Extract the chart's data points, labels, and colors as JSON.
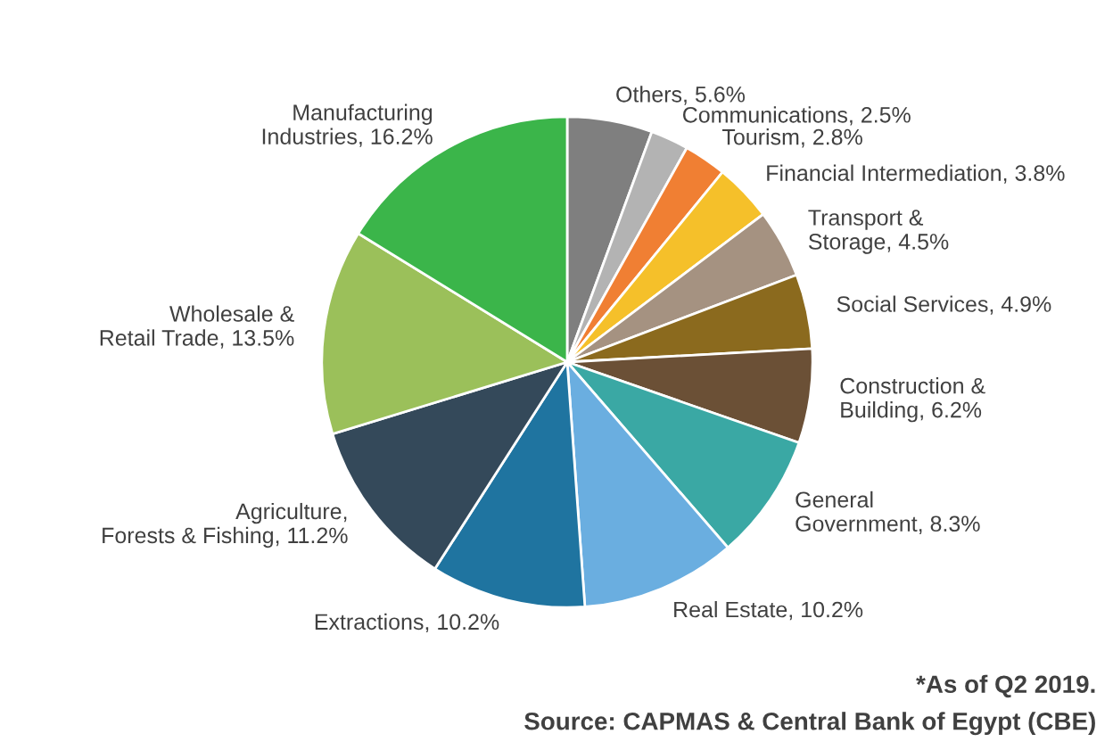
{
  "chart_data": {
    "type": "pie",
    "categories": [
      "Others",
      "Communications",
      "Tourism",
      "Financial Intermediation",
      "Transport &\nStorage",
      "Social Services",
      "Construction &\nBuilding",
      "General\nGovernment",
      "Real Estate",
      "Extractions",
      "Agriculture,\nForests & Fishing",
      "Wholesale &\nRetail Trade",
      "Manufacturing\nIndustries"
    ],
    "values": [
      5.6,
      2.5,
      2.8,
      3.8,
      4.5,
      4.9,
      6.2,
      8.3,
      10.2,
      10.2,
      11.2,
      13.5,
      16.2
    ],
    "value_labels": [
      "5.6%",
      "2.5%",
      "2.8%",
      "3.8%",
      "4.5%",
      "4.9%",
      "6.2%",
      "8.3%",
      "10.2%",
      "10.2%",
      "11.2%",
      "13.5%",
      "16.2%"
    ],
    "colors": [
      "#7f7f7f",
      "#b3b3b3",
      "#f07f33",
      "#f5c02a",
      "#a59281",
      "#8b6a1e",
      "#6b5036",
      "#3aa8a4",
      "#6aaee0",
      "#1f74a0",
      "#34495a",
      "#9bc05a",
      "#3bb54a"
    ],
    "annotations": [
      "*As of Q2 2019.",
      "Source: CAPMAS & Central Bank of Egypt (CBE)"
    ]
  }
}
